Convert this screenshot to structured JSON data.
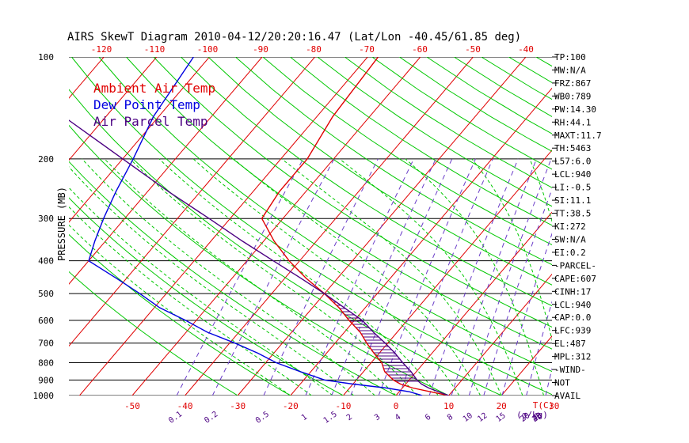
{
  "title": "AIRS SkewT Diagram 2010-04-12/20:20:16.47 (Lat/Lon -40.45/61.85 deg)",
  "colors": {
    "ambient": "#e00000",
    "dewpoint": "#0000e0",
    "parcel": "#4b0082",
    "isotherm": "#e00000",
    "dry_adiabat": "#00c800",
    "moist_adiabat": "#00c800",
    "mixing_ratio": "#6a3cc8",
    "isobar": "#000000",
    "hatch": "#4b0082"
  },
  "chart_data": {
    "type": "line",
    "xlabel": "T(C)",
    "ylabel": "PRESSURE (MB)",
    "mixing_ratio_label": "(g/kg)",
    "legend": [
      "Ambient Air Temp",
      "Dew Point Temp",
      "Air Parcel Temp"
    ],
    "legend_placement": "top-left",
    "bottom_temp_ticks": [
      "-50",
      "-40",
      "-30",
      "-20",
      "-10",
      "0",
      "10",
      "20",
      "30"
    ],
    "top_temp_ticks": [
      "-120",
      "-110",
      "-100",
      "-90",
      "-80",
      "-70",
      "-60",
      "-50",
      "-40"
    ],
    "mixing_ratio_ticks": [
      "0.1",
      "0.2",
      "0.5",
      "1",
      "1.5",
      "2",
      "3",
      "4",
      "6",
      "8",
      "10",
      "12",
      "15",
      "20",
      "25",
      "30",
      "40"
    ],
    "pressure_ticks": [
      "100",
      "200",
      "300",
      "400",
      "500",
      "600",
      "700",
      "800",
      "900",
      "1000"
    ],
    "pressure_range": [
      1000,
      100
    ],
    "series": [
      {
        "name": "Ambient Air Temp",
        "points": [
          [
            1000,
            10
          ],
          [
            975,
            6
          ],
          [
            950,
            2
          ],
          [
            925,
            -1
          ],
          [
            900,
            -3
          ],
          [
            850,
            -6
          ],
          [
            800,
            -8
          ],
          [
            750,
            -11
          ],
          [
            700,
            -14
          ],
          [
            650,
            -17
          ],
          [
            600,
            -21
          ],
          [
            550,
            -25
          ],
          [
            500,
            -30
          ],
          [
            450,
            -36
          ],
          [
            400,
            -42
          ],
          [
            350,
            -48
          ],
          [
            300,
            -54
          ],
          [
            250,
            -55
          ],
          [
            200,
            -55
          ],
          [
            150,
            -57
          ],
          [
            100,
            -58
          ]
        ]
      },
      {
        "name": "Dew Point Temp",
        "points": [
          [
            1000,
            5
          ],
          [
            975,
            2
          ],
          [
            950,
            -3
          ],
          [
            925,
            -10
          ],
          [
            900,
            -16
          ],
          [
            850,
            -22
          ],
          [
            800,
            -28
          ],
          [
            750,
            -33
          ],
          [
            700,
            -39
          ],
          [
            650,
            -46
          ],
          [
            600,
            -52
          ],
          [
            550,
            -59
          ],
          [
            500,
            -65
          ],
          [
            450,
            -72
          ],
          [
            400,
            -80
          ],
          [
            350,
            -82
          ],
          [
            300,
            -84
          ],
          [
            250,
            -86
          ],
          [
            200,
            -88
          ],
          [
            150,
            -91
          ],
          [
            100,
            -93
          ]
        ]
      },
      {
        "name": "Air Parcel Temp",
        "points": [
          [
            1000,
            10
          ],
          [
            975,
            7.5
          ],
          [
            950,
            5
          ],
          [
            925,
            3
          ],
          [
            900,
            1.5
          ],
          [
            850,
            -1
          ],
          [
            800,
            -4
          ],
          [
            750,
            -7
          ],
          [
            700,
            -10.5
          ],
          [
            650,
            -14.5
          ],
          [
            600,
            -18.5
          ],
          [
            550,
            -24
          ],
          [
            500,
            -30
          ],
          [
            450,
            -37
          ],
          [
            400,
            -45
          ],
          [
            350,
            -54
          ],
          [
            300,
            -64
          ],
          [
            250,
            -76
          ],
          [
            200,
            -90
          ],
          [
            150,
            -108
          ],
          [
            100,
            -130
          ]
        ]
      }
    ],
    "indices": [
      {
        "label": "TP:100"
      },
      {
        "label": "MW:N/A"
      },
      {
        "label": "FRZ:867"
      },
      {
        "label": "WB0:789"
      },
      {
        "label": "PW:14.30"
      },
      {
        "label": "RH:44.1"
      },
      {
        "label": "MAXT:11.7"
      },
      {
        "label": "TH:5463"
      },
      {
        "label": "L57:6.0"
      },
      {
        "label": "LCL:940"
      },
      {
        "label": "LI:-0.5"
      },
      {
        "label": "SI:11.1"
      },
      {
        "label": "TT:38.5"
      },
      {
        "label": "KI:272"
      },
      {
        "label": "SW:N/A"
      },
      {
        "label": "EI:0.2"
      },
      {
        "label": "-PARCEL-"
      },
      {
        "label": "CAPE:607"
      },
      {
        "label": "CINH:17"
      },
      {
        "label": "LCL:940"
      },
      {
        "label": "CAP:0.0"
      },
      {
        "label": "LFC:939"
      },
      {
        "label": "EL:487"
      },
      {
        "label": "MPL:312"
      },
      {
        "label": "-WIND-"
      },
      {
        "label": "NOT"
      },
      {
        "label": "AVAIL"
      }
    ]
  }
}
